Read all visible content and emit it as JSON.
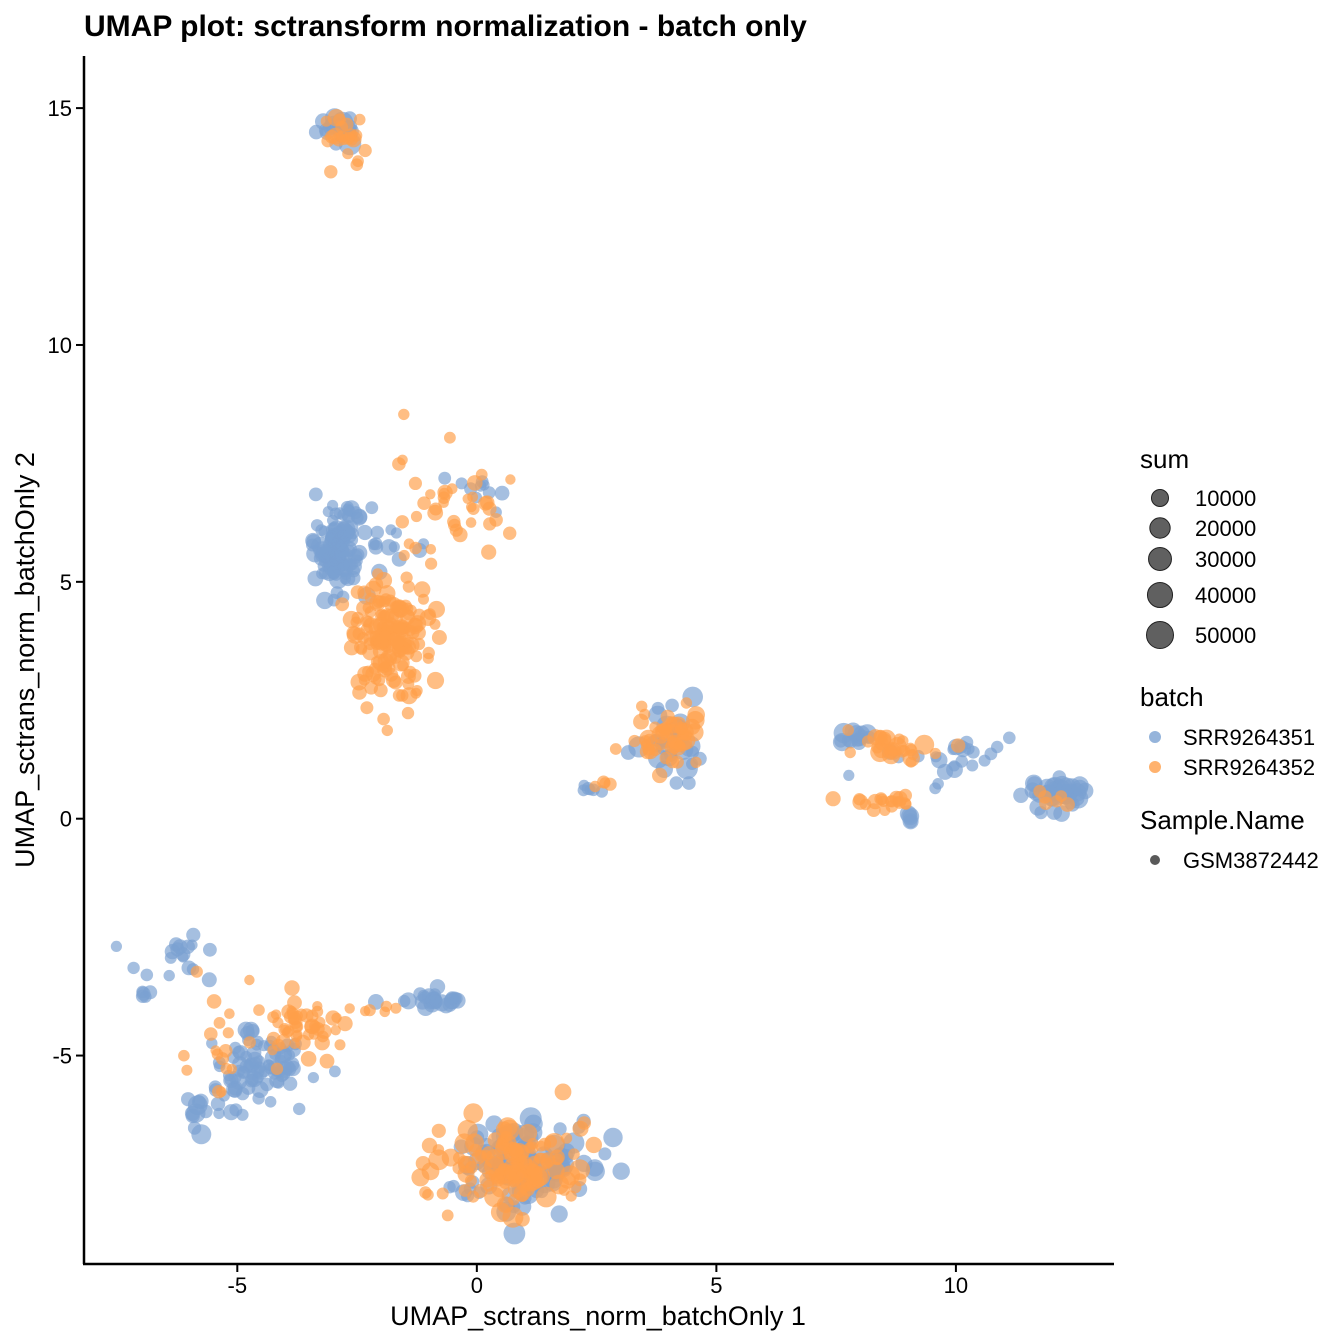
{
  "chart_data": {
    "type": "scatter",
    "title": "UMAP plot: sctransform normalization - batch only",
    "xlabel": "UMAP_sctrans_norm_batchOnly 1",
    "ylabel": "UMAP_sctrans_norm_batchOnly 2",
    "xlim": [
      -8.2,
      13.3
    ],
    "ylim": [
      -9.4,
      16.1
    ],
    "x_ticks": [
      -5,
      0,
      5,
      10
    ],
    "y_ticks": [
      -5,
      0,
      5,
      10,
      15
    ],
    "x_tick_labels": [
      "-5",
      "0",
      "5",
      "10"
    ],
    "y_tick_labels": [
      "-5",
      "0",
      "5",
      "10",
      "15"
    ],
    "grid": false,
    "colors": {
      "SRR9264351": "#7aa1d2",
      "SRR9264352": "#ff9f4a",
      "legend_dot": "#595959"
    },
    "legend": {
      "size_title": "sum",
      "size_values": [
        10000,
        20000,
        30000,
        40000,
        50000
      ],
      "size_labels": [
        "10000",
        "20000",
        "30000",
        "40000",
        "50000"
      ],
      "color_title": "batch",
      "color_entries": [
        "SRR9264351",
        "SRR9264352"
      ],
      "shape_title": "Sample.Name",
      "shape_entries": [
        "GSM3872442"
      ]
    },
    "series": [
      {
        "name": "SRR9264351",
        "clusters": [
          {
            "cx": -2.9,
            "cy": 14.6,
            "sx": 0.22,
            "sy": 0.2,
            "n": 18,
            "smin": 8000,
            "smax": 50000
          },
          {
            "cx": -2.9,
            "cy": 5.7,
            "sx": 0.3,
            "sy": 0.45,
            "n": 120,
            "smin": 4000,
            "smax": 25000
          },
          {
            "cx": 0.2,
            "cy": 6.9,
            "sx": 0.25,
            "sy": 0.25,
            "n": 10,
            "smin": 4000,
            "smax": 15000
          },
          {
            "cx": -1.9,
            "cy": 5.9,
            "sx": 0.35,
            "sy": 0.25,
            "n": 10,
            "smin": 4000,
            "smax": 20000
          },
          {
            "cx": 4.1,
            "cy": 1.6,
            "sx": 0.4,
            "sy": 0.35,
            "n": 30,
            "smin": 6000,
            "smax": 40000
          },
          {
            "cx": 2.4,
            "cy": 0.65,
            "sx": 0.12,
            "sy": 0.06,
            "n": 6,
            "smin": 4000,
            "smax": 12000
          },
          {
            "cx": 7.9,
            "cy": 1.7,
            "sx": 0.25,
            "sy": 0.1,
            "n": 14,
            "smin": 8000,
            "smax": 35000
          },
          {
            "cx": 9.8,
            "cy": 1.3,
            "sx": 0.6,
            "sy": 0.25,
            "n": 24,
            "smin": 4000,
            "smax": 20000
          },
          {
            "cx": 12.0,
            "cy": 0.5,
            "sx": 0.3,
            "sy": 0.22,
            "n": 40,
            "smin": 8000,
            "smax": 40000
          },
          {
            "cx": 9.0,
            "cy": 0.05,
            "sx": 0.1,
            "sy": 0.08,
            "n": 5,
            "smin": 8000,
            "smax": 30000
          },
          {
            "cx": -4.6,
            "cy": -5.2,
            "sx": 0.5,
            "sy": 0.35,
            "n": 80,
            "smin": 4000,
            "smax": 20000
          },
          {
            "cx": -6.1,
            "cy": -3.0,
            "sx": 0.5,
            "sy": 0.3,
            "n": 18,
            "smin": 4000,
            "smax": 15000
          },
          {
            "cx": -6.9,
            "cy": -3.7,
            "sx": 0.1,
            "sy": 0.05,
            "n": 5,
            "smin": 6000,
            "smax": 15000
          },
          {
            "cx": -5.9,
            "cy": -6.3,
            "sx": 0.15,
            "sy": 0.2,
            "n": 8,
            "smin": 8000,
            "smax": 35000
          },
          {
            "cx": -5.2,
            "cy": -5.8,
            "sx": 0.4,
            "sy": 0.2,
            "n": 14,
            "smin": 4000,
            "smax": 15000
          },
          {
            "cx": -0.9,
            "cy": -3.8,
            "sx": 0.3,
            "sy": 0.08,
            "n": 30,
            "smin": 6000,
            "smax": 20000
          },
          {
            "cx": 0.8,
            "cy": -7.3,
            "sx": 0.8,
            "sy": 0.5,
            "n": 120,
            "smin": 6000,
            "smax": 40000
          }
        ]
      },
      {
        "name": "SRR9264352",
        "clusters": [
          {
            "cx": -2.8,
            "cy": 14.5,
            "sx": 0.22,
            "sy": 0.25,
            "n": 22,
            "smin": 4000,
            "smax": 20000
          },
          {
            "cx": -1.8,
            "cy": 3.8,
            "sx": 0.45,
            "sy": 0.6,
            "n": 170,
            "smin": 4000,
            "smax": 20000
          },
          {
            "cx": -0.6,
            "cy": 6.6,
            "sx": 0.6,
            "sy": 0.55,
            "n": 40,
            "smin": 3000,
            "smax": 15000
          },
          {
            "cx": 4.0,
            "cy": 1.7,
            "sx": 0.35,
            "sy": 0.3,
            "n": 50,
            "smin": 4000,
            "smax": 25000
          },
          {
            "cx": 2.6,
            "cy": 0.75,
            "sx": 0.15,
            "sy": 0.05,
            "n": 4,
            "smin": 4000,
            "smax": 12000
          },
          {
            "cx": 8.8,
            "cy": 1.5,
            "sx": 0.5,
            "sy": 0.15,
            "n": 30,
            "smin": 4000,
            "smax": 30000
          },
          {
            "cx": 8.6,
            "cy": 0.35,
            "sx": 0.35,
            "sy": 0.08,
            "n": 20,
            "smin": 4000,
            "smax": 15000
          },
          {
            "cx": 11.9,
            "cy": 0.35,
            "sx": 0.25,
            "sy": 0.12,
            "n": 6,
            "smin": 4000,
            "smax": 15000
          },
          {
            "cx": -3.6,
            "cy": -4.4,
            "sx": 0.45,
            "sy": 0.3,
            "n": 50,
            "smin": 3000,
            "smax": 15000
          },
          {
            "cx": -5.3,
            "cy": -4.8,
            "sx": 0.5,
            "sy": 0.7,
            "n": 20,
            "smin": 3000,
            "smax": 12000
          },
          {
            "cx": -2.0,
            "cy": -4.0,
            "sx": 0.5,
            "sy": 0.05,
            "n": 6,
            "smin": 3000,
            "smax": 10000
          },
          {
            "cx": 0.8,
            "cy": -7.3,
            "sx": 0.75,
            "sy": 0.45,
            "n": 130,
            "smin": 4000,
            "smax": 35000
          }
        ]
      }
    ]
  }
}
